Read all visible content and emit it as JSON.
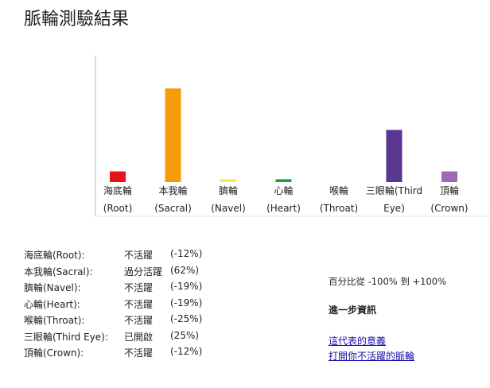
{
  "page": {
    "title": "脈輪測驗結果"
  },
  "chart_data": {
    "type": "bar",
    "ylim": [
      -40,
      70
    ],
    "bars": [
      {
        "label_lines": [
          "海底輪",
          "(Root)"
        ],
        "value": -12,
        "color": "#e8141b"
      },
      {
        "label_lines": [
          "本我輪",
          "(Sacral)"
        ],
        "value": 62,
        "color": "#f59b0c"
      },
      {
        "label_lines": [
          "臍輪",
          "(Navel)"
        ],
        "value": -19,
        "color": "#f7ed4a"
      },
      {
        "label_lines": [
          "心輪",
          "(Heart)"
        ],
        "value": -19,
        "color": "#17a33a"
      },
      {
        "label_lines": [
          "喉輪",
          "(Throat)"
        ],
        "value": -25,
        "color": "#2b8cf0"
      },
      {
        "label_lines": [
          "三眼輪(Third",
          "Eye)"
        ],
        "value": 25,
        "color": "#5a3691"
      },
      {
        "label_lines": [
          "頂輪",
          "(Crown)"
        ],
        "value": -12,
        "color": "#9e6bb2"
      }
    ]
  },
  "results": [
    {
      "name": "海底輪(Root):",
      "status": "不活躍",
      "pct": "(-12%)"
    },
    {
      "name": "本我輪(Sacral):",
      "status": "過分活躍",
      "pct": "(62%)"
    },
    {
      "name": "臍輪(Navel):",
      "status": "不活躍",
      "pct": "(-19%)"
    },
    {
      "name": "心輪(Heart):",
      "status": "不活躍",
      "pct": "(-19%)"
    },
    {
      "name": "喉輪(Throat):",
      "status": "不活躍",
      "pct": "(-25%)"
    },
    {
      "name": "三眼輪(Third Eye):",
      "status": "已開啟",
      "pct": "(25%)"
    },
    {
      "name": "頂輪(Crown):",
      "status": "不活躍",
      "pct": "(-12%)"
    }
  ],
  "side": {
    "range_text": "百分比從 -100% 到 +100%",
    "more_info_title": "進一步資訊",
    "link_meaning": "這代表的意義",
    "link_open": "打開你不活躍的脈輪"
  }
}
